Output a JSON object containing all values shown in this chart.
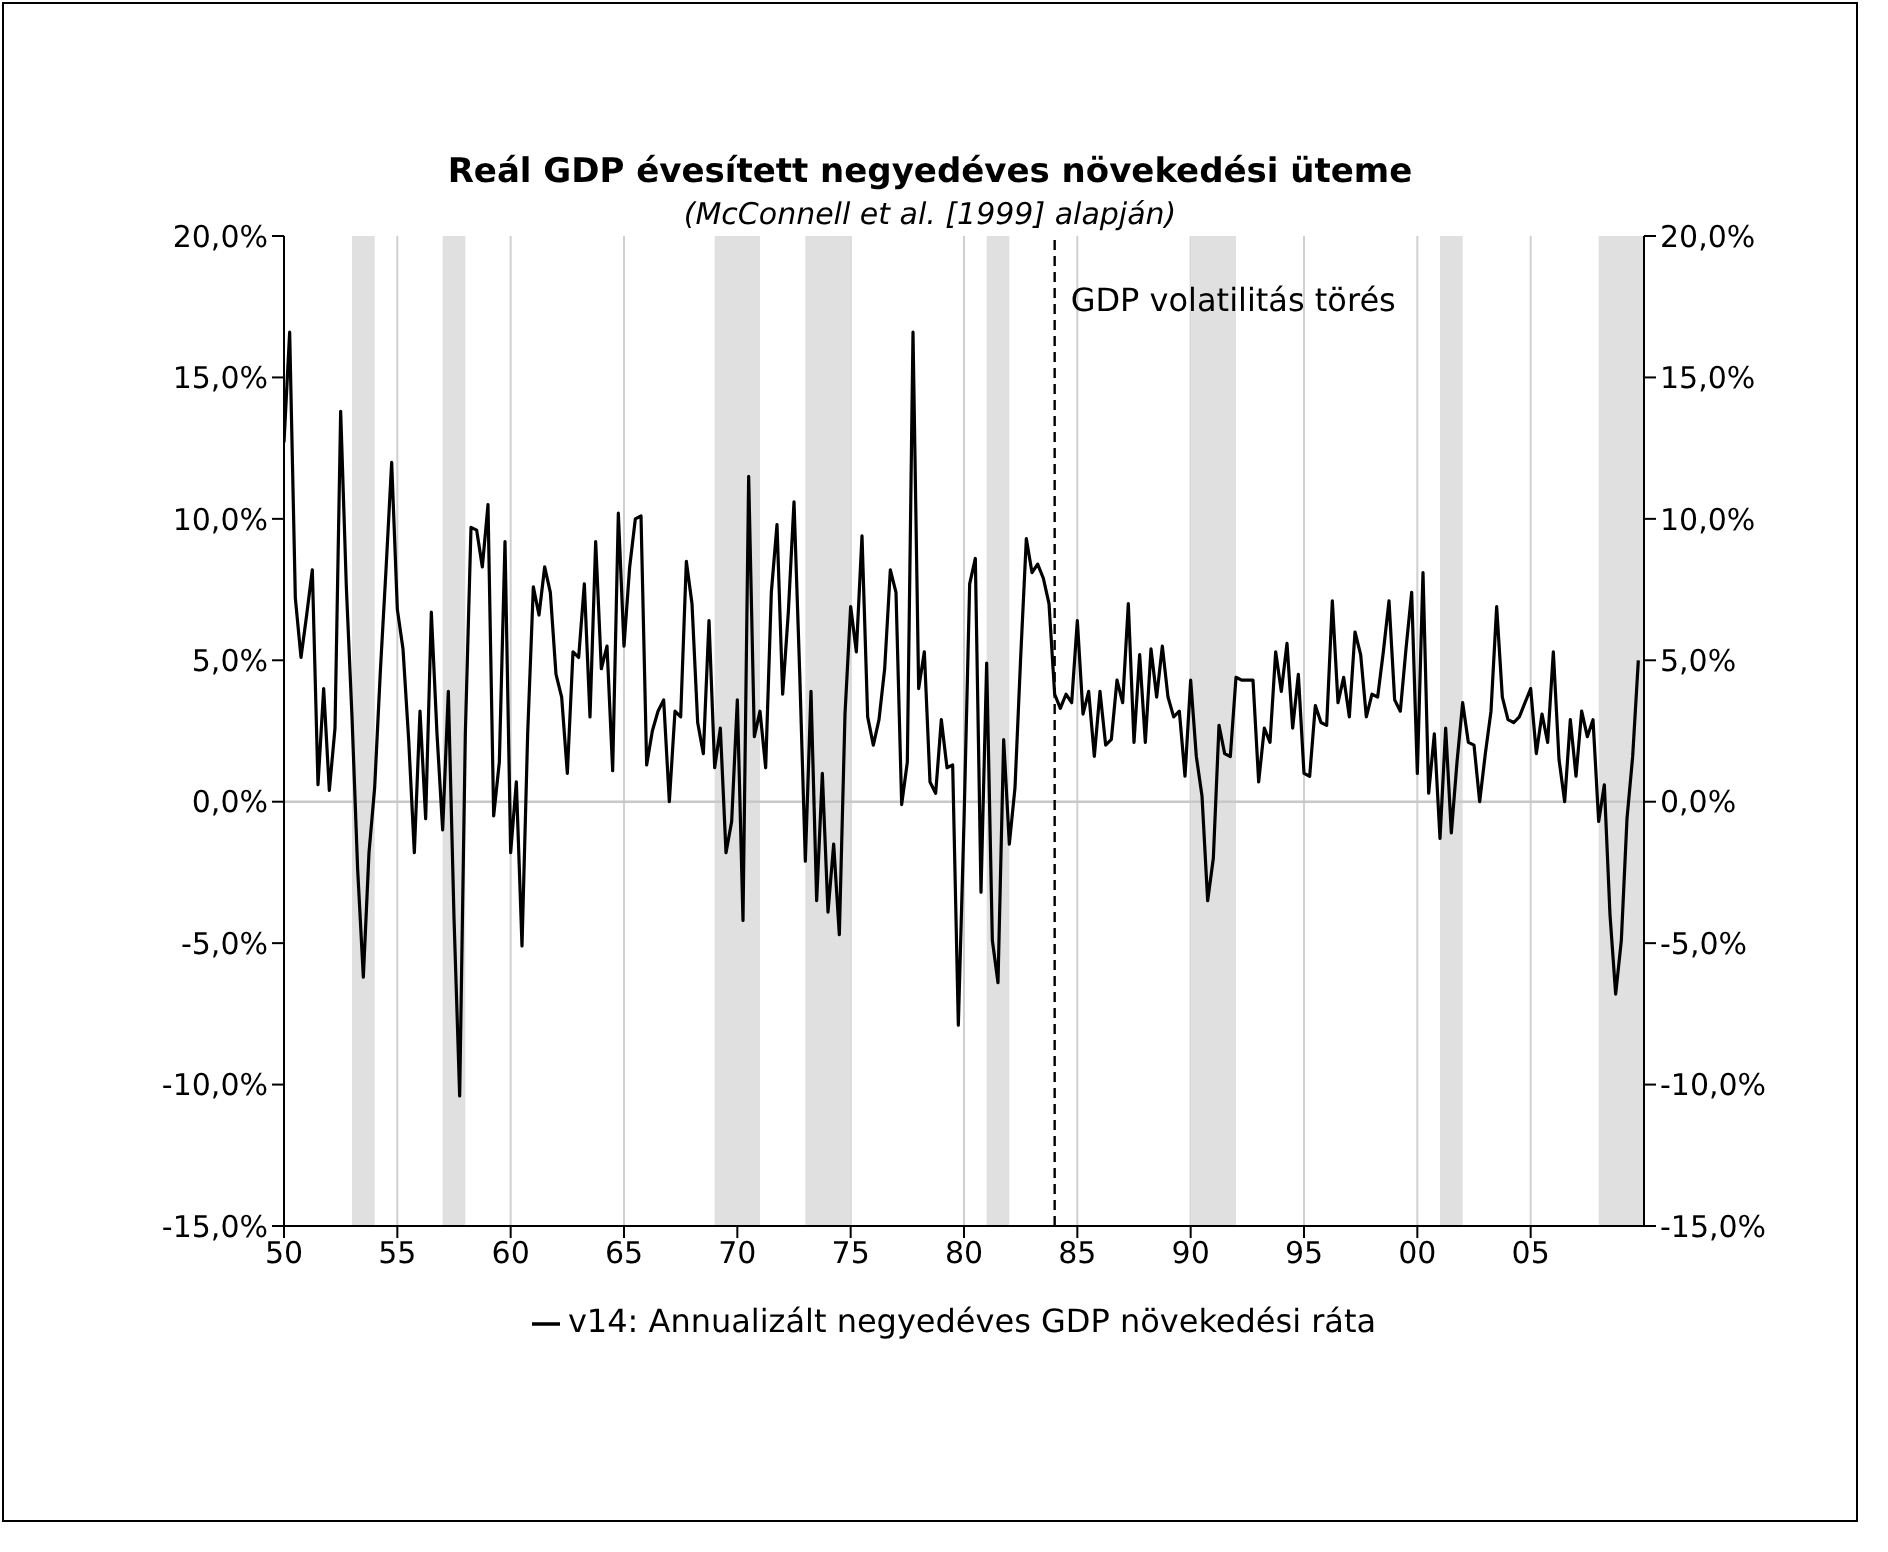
{
  "chart_data": {
    "type": "line",
    "title": "Reál GDP évesített negyedéves növekedési üteme",
    "subtitle": "(McConnell et al. [1999] alapján)",
    "x": [
      1950,
      1950.25,
      1950.5,
      1950.75,
      1951,
      1951.25,
      1951.5,
      1951.75,
      1952,
      1952.25,
      1952.5,
      1952.75,
      1953,
      1953.25,
      1953.5,
      1953.75,
      1954,
      1954.25,
      1954.5,
      1954.75,
      1955,
      1955.25,
      1955.5,
      1955.75,
      1956,
      1956.25,
      1956.5,
      1956.75,
      1957,
      1957.25,
      1957.5,
      1957.75,
      1958,
      1958.25,
      1958.5,
      1958.75,
      1959,
      1959.25,
      1959.5,
      1959.75,
      1960,
      1960.25,
      1960.5,
      1960.75,
      1961,
      1961.25,
      1961.5,
      1961.75,
      1962,
      1962.25,
      1962.5,
      1962.75,
      1963,
      1963.25,
      1963.5,
      1963.75,
      1964,
      1964.25,
      1964.5,
      1964.75,
      1965,
      1965.25,
      1965.5,
      1965.75,
      1966,
      1966.25,
      1966.5,
      1966.75,
      1967,
      1967.25,
      1967.5,
      1967.75,
      1968,
      1968.25,
      1968.5,
      1968.75,
      1969,
      1969.25,
      1969.5,
      1969.75,
      1970,
      1970.25,
      1970.5,
      1970.75,
      1971,
      1971.25,
      1971.5,
      1971.75,
      1972,
      1972.25,
      1972.5,
      1972.75,
      1973,
      1973.25,
      1973.5,
      1973.75,
      1974,
      1974.25,
      1974.5,
      1974.75,
      1975,
      1975.25,
      1975.5,
      1975.75,
      1976,
      1976.25,
      1976.5,
      1976.75,
      1977,
      1977.25,
      1977.5,
      1977.75,
      1978,
      1978.25,
      1978.5,
      1978.75,
      1979,
      1979.25,
      1979.5,
      1979.75,
      1980,
      1980.25,
      1980.5,
      1980.75,
      1981,
      1981.25,
      1981.5,
      1981.75,
      1982,
      1982.25,
      1982.5,
      1982.75,
      1983,
      1983.25,
      1983.5,
      1983.75,
      1984,
      1984.25,
      1984.5,
      1984.75,
      1985,
      1985.25,
      1985.5,
      1985.75,
      1986,
      1986.25,
      1986.5,
      1986.75,
      1987,
      1987.25,
      1987.5,
      1987.75,
      1988,
      1988.25,
      1988.5,
      1988.75,
      1989,
      1989.25,
      1989.5,
      1989.75,
      1990,
      1990.25,
      1990.5,
      1990.75,
      1991,
      1991.25,
      1991.5,
      1991.75,
      1992,
      1992.25,
      1992.5,
      1992.75,
      1993,
      1993.25,
      1993.5,
      1993.75,
      1994,
      1994.25,
      1994.5,
      1994.75,
      1995,
      1995.25,
      1995.5,
      1995.75,
      1996,
      1996.25,
      1996.5,
      1996.75,
      1997,
      1997.25,
      1997.5,
      1997.75,
      1998,
      1998.25,
      1998.5,
      1998.75,
      1999,
      1999.25,
      1999.5,
      1999.75,
      2000,
      2000.25,
      2000.5,
      2000.75,
      2001,
      2001.25,
      2001.5,
      2001.75,
      2002,
      2002.25,
      2002.5,
      2002.75,
      2003,
      2003.25,
      2003.5,
      2003.75,
      2004,
      2004.25,
      2004.5,
      2004.75,
      2005,
      2005.25,
      2005.5,
      2005.75,
      2006,
      2006.25,
      2006.5,
      2006.75,
      2007,
      2007.25,
      2007.5,
      2007.75,
      2008,
      2008.25,
      2008.5,
      2008.75,
      2009,
      2009.25,
      2009.5,
      2009.75
    ],
    "series": [
      {
        "name": "v14: Annualizált negyedéves GDP növekedési ráta",
        "color": "#000000",
        "values": [
          12.7,
          16.6,
          7.2,
          5.1,
          6.6,
          8.2,
          0.6,
          4.0,
          0.4,
          2.6,
          13.8,
          7.6,
          3.0,
          -2.4,
          -6.2,
          -1.8,
          0.5,
          4.6,
          8.2,
          12.0,
          6.8,
          5.4,
          2.2,
          -1.8,
          3.2,
          -0.6,
          6.7,
          2.4,
          -1.0,
          3.9,
          -4.1,
          -10.4,
          2.4,
          9.7,
          9.6,
          8.3,
          10.5,
          -0.5,
          1.4,
          9.2,
          -1.8,
          0.7,
          -5.1,
          2.4,
          7.6,
          6.6,
          8.3,
          7.4,
          4.5,
          3.7,
          1.0,
          5.3,
          5.1,
          7.7,
          3.0,
          9.2,
          4.7,
          5.5,
          1.1,
          10.2,
          5.5,
          8.3,
          10.0,
          10.1,
          1.3,
          2.5,
          3.2,
          3.6,
          0.0,
          3.2,
          3.0,
          8.5,
          7.0,
          2.8,
          1.7,
          6.4,
          1.2,
          2.6,
          -1.8,
          -0.7,
          3.6,
          -4.2,
          11.5,
          2.3,
          3.2,
          1.2,
          7.4,
          9.8,
          3.8,
          6.7,
          10.6,
          4.6,
          -2.1,
          3.9,
          -3.5,
          1.0,
          -3.9,
          -1.5,
          -4.7,
          3.1,
          6.9,
          5.3,
          9.4,
          3.0,
          2.0,
          2.9,
          4.7,
          8.2,
          7.4,
          -0.1,
          1.4,
          16.6,
          4.0,
          5.3,
          0.7,
          0.3,
          2.9,
          1.2,
          1.3,
          -7.9,
          -0.7,
          7.7,
          8.6,
          -3.2,
          4.9,
          -4.9,
          -6.4,
          2.2,
          -1.5,
          0.5,
          5.1,
          9.3,
          8.1,
          8.4,
          7.9,
          7.0,
          3.8,
          3.3,
          3.8,
          3.5,
          6.4,
          3.1,
          3.9,
          1.6,
          3.9,
          2.0,
          2.2,
          4.3,
          3.5,
          7.0,
          2.1,
          5.2,
          2.1,
          5.4,
          3.7,
          5.5,
          3.7,
          3.0,
          3.2,
          0.9,
          4.3,
          1.6,
          0.2,
          -3.5,
          -2.0,
          2.7,
          1.7,
          1.6,
          4.4,
          4.3,
          4.3,
          4.3,
          0.7,
          2.6,
          2.1,
          5.3,
          3.9,
          5.6,
          2.6,
          4.5,
          1.0,
          0.9,
          3.4,
          2.8,
          2.7,
          7.1,
          3.5,
          4.4,
          3.0,
          6.0,
          5.2,
          3.0,
          3.8,
          3.7,
          5.3,
          7.1,
          3.6,
          3.2,
          5.4,
          7.4,
          1.0,
          8.1,
          0.3,
          2.4,
          -1.3,
          2.6,
          -1.1,
          1.4,
          3.5,
          2.1,
          2.0,
          0.0,
          1.7,
          3.2,
          6.9,
          3.7,
          2.9,
          2.8,
          3.0,
          3.5,
          4.0,
          1.7,
          3.1,
          2.1,
          5.3,
          1.5,
          0.0,
          2.9,
          0.9,
          3.2,
          2.3,
          2.9,
          -0.7,
          0.6,
          -4.0,
          -6.8,
          -4.9,
          -0.6,
          1.6,
          5.0
        ]
      }
    ],
    "xlim": [
      1950,
      2010
    ],
    "xticks": [
      {
        "value": 1950,
        "label": "50"
      },
      {
        "value": 1955,
        "label": "55"
      },
      {
        "value": 1960,
        "label": "60"
      },
      {
        "value": 1965,
        "label": "65"
      },
      {
        "value": 1970,
        "label": "70"
      },
      {
        "value": 1975,
        "label": "75"
      },
      {
        "value": 1980,
        "label": "80"
      },
      {
        "value": 1985,
        "label": "85"
      },
      {
        "value": 1990,
        "label": "90"
      },
      {
        "value": 1995,
        "label": "95"
      },
      {
        "value": 2000,
        "label": "00"
      },
      {
        "value": 2005,
        "label": "05"
      }
    ],
    "ylim": [
      -15,
      20
    ],
    "yticks": [
      {
        "value": -15,
        "label": "-15,0%"
      },
      {
        "value": -10,
        "label": "-10,0%"
      },
      {
        "value": -5,
        "label": "-5,0%"
      },
      {
        "value": 0,
        "label": "0,0%"
      },
      {
        "value": 5,
        "label": "5,0%"
      },
      {
        "value": 10,
        "label": "10,0%"
      },
      {
        "value": 15,
        "label": "15,0%"
      },
      {
        "value": 20,
        "label": "20,0%"
      }
    ],
    "y2lim": [
      -15,
      20
    ],
    "y2ticks": [
      {
        "value": -15,
        "label": "-15,0%"
      },
      {
        "value": -10,
        "label": "-10,0%"
      },
      {
        "value": -5,
        "label": "-5,0%"
      },
      {
        "value": 0,
        "label": "0,0%"
      },
      {
        "value": 5,
        "label": "5,0%"
      },
      {
        "value": 10,
        "label": "10,0%"
      },
      {
        "value": 15,
        "label": "15,0%"
      },
      {
        "value": 20,
        "label": "20,0%"
      }
    ],
    "grid": "x",
    "ref_lines": [
      {
        "axis": "y",
        "value": 0,
        "color": "#c8c8c8"
      },
      {
        "axis": "x",
        "value": 1984,
        "label": "GDP volatilitás törés",
        "color": "#000000",
        "line_style": "dashed"
      }
    ],
    "bands": [
      {
        "axis": "x",
        "from": 1953,
        "to": 1954,
        "color": "#e0e0e0"
      },
      {
        "axis": "x",
        "from": 1957,
        "to": 1958,
        "color": "#e0e0e0"
      },
      {
        "axis": "x",
        "from": 1969,
        "to": 1971,
        "color": "#e0e0e0"
      },
      {
        "axis": "x",
        "from": 1973,
        "to": 1975,
        "color": "#e0e0e0"
      },
      {
        "axis": "x",
        "from": 1981,
        "to": 1982,
        "color": "#e0e0e0"
      },
      {
        "axis": "x",
        "from": 1990,
        "to": 1992,
        "color": "#e0e0e0"
      },
      {
        "axis": "x",
        "from": 2001,
        "to": 2002,
        "color": "#e0e0e0"
      },
      {
        "axis": "x",
        "from": 2008,
        "to": 2010,
        "color": "#e0e0e0"
      }
    ],
    "legend": "bottom",
    "marker": "none",
    "line_style": "solid"
  }
}
